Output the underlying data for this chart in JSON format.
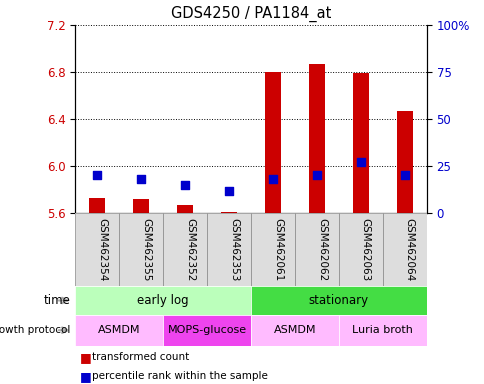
{
  "title": "GDS4250 / PA1184_at",
  "samples": [
    "GSM462354",
    "GSM462355",
    "GSM462352",
    "GSM462353",
    "GSM462061",
    "GSM462062",
    "GSM462063",
    "GSM462064"
  ],
  "red_values": [
    5.73,
    5.72,
    5.67,
    5.61,
    6.8,
    6.87,
    6.79,
    6.47
  ],
  "blue_values": [
    20,
    18,
    15,
    12,
    18,
    20,
    27,
    20
  ],
  "ylim_left": [
    5.6,
    7.2
  ],
  "ylim_right": [
    0,
    100
  ],
  "yticks_left": [
    5.6,
    6.0,
    6.4,
    6.8,
    7.2
  ],
  "yticks_right": [
    0,
    25,
    50,
    75,
    100
  ],
  "ytick_right_labels": [
    "0",
    "25",
    "50",
    "75",
    "100%"
  ],
  "base_value": 5.6,
  "time_groups": [
    {
      "label": "early log",
      "start": 0,
      "end": 4,
      "color": "#bbffbb"
    },
    {
      "label": "stationary",
      "start": 4,
      "end": 8,
      "color": "#44dd44"
    }
  ],
  "protocol_groups": [
    {
      "label": "ASMDM",
      "start": 0,
      "end": 2,
      "color": "#ffbbff"
    },
    {
      "label": "MOPS-glucose",
      "start": 2,
      "end": 4,
      "color": "#ee44ee"
    },
    {
      "label": "ASMDM",
      "start": 4,
      "end": 6,
      "color": "#ffbbff"
    },
    {
      "label": "Luria broth",
      "start": 6,
      "end": 8,
      "color": "#ffbbff"
    }
  ],
  "bar_color": "#cc0000",
  "dot_color": "#0000cc",
  "grid_color": "#000000",
  "left_label_color": "#cc0000",
  "right_label_color": "#0000cc",
  "bar_width": 0.35,
  "dot_size": 40,
  "sample_box_color": "#dddddd",
  "sample_box_edge": "#888888"
}
